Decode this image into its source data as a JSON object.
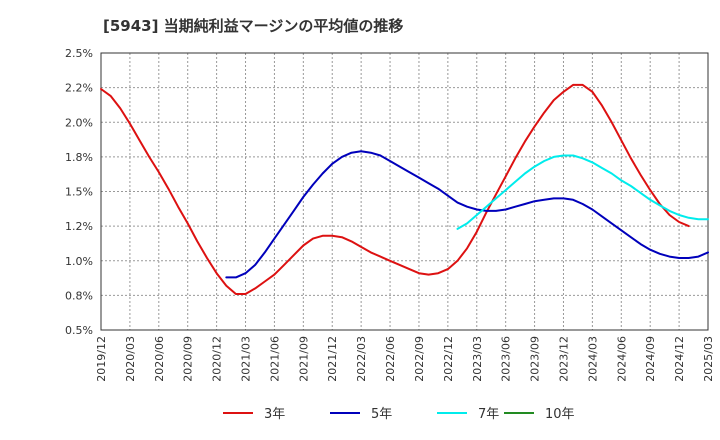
{
  "chart_data": {
    "type": "line",
    "title": "[5943]  当期純利益マージンの平均値の推移",
    "xlabel": "",
    "ylabel": "",
    "ylim": [
      0.5,
      2.5
    ],
    "xlim": [
      "2019-12",
      "2025-03"
    ],
    "y_ticks": [
      "0.5%",
      "0.8%",
      "1.0%",
      "1.2%",
      "1.5%",
      "1.8%",
      "2.0%",
      "2.2%",
      "2.5%"
    ],
    "x_ticks": [
      "2019/12",
      "2020/03",
      "2020/06",
      "2020/09",
      "2020/12",
      "2021/03",
      "2021/06",
      "2021/09",
      "2021/12",
      "2022/03",
      "2022/06",
      "2022/09",
      "2022/12",
      "2023/03",
      "2023/06",
      "2023/09",
      "2023/12",
      "2024/03",
      "2024/06",
      "2024/09",
      "2024/12",
      "2025/03"
    ],
    "grid": true,
    "legend_position": "bottom",
    "series": [
      {
        "name": "3年",
        "color": "#dd1111",
        "points": [
          [
            "2019-12",
            2.24
          ],
          [
            "2020-01",
            2.19
          ],
          [
            "2020-02",
            2.1
          ],
          [
            "2020-03",
            1.99
          ],
          [
            "2020-04",
            1.87
          ],
          [
            "2020-05",
            1.75
          ],
          [
            "2020-06",
            1.64
          ],
          [
            "2020-07",
            1.52
          ],
          [
            "2020-08",
            1.39
          ],
          [
            "2020-09",
            1.27
          ],
          [
            "2020-10",
            1.14
          ],
          [
            "2020-11",
            1.02
          ],
          [
            "2020-12",
            0.91
          ],
          [
            "2021-01",
            0.82
          ],
          [
            "2021-02",
            0.76
          ],
          [
            "2021-03",
            0.76
          ],
          [
            "2021-04",
            0.8
          ],
          [
            "2021-05",
            0.85
          ],
          [
            "2021-06",
            0.9
          ],
          [
            "2021-07",
            0.97
          ],
          [
            "2021-08",
            1.04
          ],
          [
            "2021-09",
            1.11
          ],
          [
            "2021-10",
            1.16
          ],
          [
            "2021-11",
            1.18
          ],
          [
            "2021-12",
            1.18
          ],
          [
            "2022-01",
            1.17
          ],
          [
            "2022-02",
            1.14
          ],
          [
            "2022-03",
            1.1
          ],
          [
            "2022-04",
            1.06
          ],
          [
            "2022-05",
            1.03
          ],
          [
            "2022-06",
            1.0
          ],
          [
            "2022-07",
            0.97
          ],
          [
            "2022-08",
            0.94
          ],
          [
            "2022-09",
            0.91
          ],
          [
            "2022-10",
            0.9
          ],
          [
            "2022-11",
            0.91
          ],
          [
            "2022-12",
            0.94
          ],
          [
            "2023-01",
            1.0
          ],
          [
            "2023-02",
            1.09
          ],
          [
            "2023-03",
            1.21
          ],
          [
            "2023-04",
            1.35
          ],
          [
            "2023-05",
            1.48
          ],
          [
            "2023-06",
            1.61
          ],
          [
            "2023-07",
            1.74
          ],
          [
            "2023-08",
            1.86
          ],
          [
            "2023-09",
            1.97
          ],
          [
            "2023-10",
            2.07
          ],
          [
            "2023-11",
            2.16
          ],
          [
            "2023-12",
            2.22
          ],
          [
            "2024-01",
            2.27
          ],
          [
            "2024-02",
            2.27
          ],
          [
            "2024-03",
            2.22
          ],
          [
            "2024-04",
            2.12
          ],
          [
            "2024-05",
            2.0
          ],
          [
            "2024-06",
            1.87
          ],
          [
            "2024-07",
            1.74
          ],
          [
            "2024-08",
            1.62
          ],
          [
            "2024-09",
            1.51
          ],
          [
            "2024-10",
            1.41
          ],
          [
            "2024-11",
            1.33
          ],
          [
            "2024-12",
            1.28
          ],
          [
            "2025-01",
            1.25
          ]
        ]
      },
      {
        "name": "5年",
        "color": "#0000bb",
        "points": [
          [
            "2021-01",
            0.88
          ],
          [
            "2021-02",
            0.88
          ],
          [
            "2021-03",
            0.91
          ],
          [
            "2021-04",
            0.97
          ],
          [
            "2021-05",
            1.06
          ],
          [
            "2021-06",
            1.16
          ],
          [
            "2021-07",
            1.26
          ],
          [
            "2021-08",
            1.36
          ],
          [
            "2021-09",
            1.46
          ],
          [
            "2021-10",
            1.55
          ],
          [
            "2021-11",
            1.63
          ],
          [
            "2021-12",
            1.7
          ],
          [
            "2022-01",
            1.75
          ],
          [
            "2022-02",
            1.78
          ],
          [
            "2022-03",
            1.79
          ],
          [
            "2022-04",
            1.78
          ],
          [
            "2022-05",
            1.76
          ],
          [
            "2022-06",
            1.72
          ],
          [
            "2022-07",
            1.68
          ],
          [
            "2022-08",
            1.64
          ],
          [
            "2022-09",
            1.6
          ],
          [
            "2022-10",
            1.56
          ],
          [
            "2022-11",
            1.52
          ],
          [
            "2022-12",
            1.47
          ],
          [
            "2023-01",
            1.42
          ],
          [
            "2023-02",
            1.39
          ],
          [
            "2023-03",
            1.37
          ],
          [
            "2023-04",
            1.36
          ],
          [
            "2023-05",
            1.36
          ],
          [
            "2023-06",
            1.37
          ],
          [
            "2023-07",
            1.39
          ],
          [
            "2023-08",
            1.41
          ],
          [
            "2023-09",
            1.43
          ],
          [
            "2023-10",
            1.44
          ],
          [
            "2023-11",
            1.45
          ],
          [
            "2023-12",
            1.45
          ],
          [
            "2024-01",
            1.44
          ],
          [
            "2024-02",
            1.41
          ],
          [
            "2024-03",
            1.37
          ],
          [
            "2024-04",
            1.32
          ],
          [
            "2024-05",
            1.27
          ],
          [
            "2024-06",
            1.22
          ],
          [
            "2024-07",
            1.17
          ],
          [
            "2024-08",
            1.12
          ],
          [
            "2024-09",
            1.08
          ],
          [
            "2024-10",
            1.05
          ],
          [
            "2024-11",
            1.03
          ],
          [
            "2024-12",
            1.02
          ],
          [
            "2025-01",
            1.02
          ],
          [
            "2025-02",
            1.03
          ],
          [
            "2025-03",
            1.06
          ]
        ]
      },
      {
        "name": "7年",
        "color": "#00ecec",
        "points": [
          [
            "2023-01",
            1.23
          ],
          [
            "2023-02",
            1.27
          ],
          [
            "2023-03",
            1.33
          ],
          [
            "2023-04",
            1.39
          ],
          [
            "2023-05",
            1.45
          ],
          [
            "2023-06",
            1.51
          ],
          [
            "2023-07",
            1.57
          ],
          [
            "2023-08",
            1.63
          ],
          [
            "2023-09",
            1.68
          ],
          [
            "2023-10",
            1.72
          ],
          [
            "2023-11",
            1.75
          ],
          [
            "2023-12",
            1.76
          ],
          [
            "2024-01",
            1.76
          ],
          [
            "2024-02",
            1.74
          ],
          [
            "2024-03",
            1.71
          ],
          [
            "2024-04",
            1.67
          ],
          [
            "2024-05",
            1.63
          ],
          [
            "2024-06",
            1.58
          ],
          [
            "2024-07",
            1.54
          ],
          [
            "2024-08",
            1.49
          ],
          [
            "2024-09",
            1.44
          ],
          [
            "2024-10",
            1.4
          ],
          [
            "2024-11",
            1.36
          ],
          [
            "2024-12",
            1.33
          ],
          [
            "2025-01",
            1.31
          ],
          [
            "2025-02",
            1.3
          ],
          [
            "2025-03",
            1.3
          ]
        ]
      },
      {
        "name": "10年",
        "color": "#228b22",
        "points": []
      }
    ]
  }
}
